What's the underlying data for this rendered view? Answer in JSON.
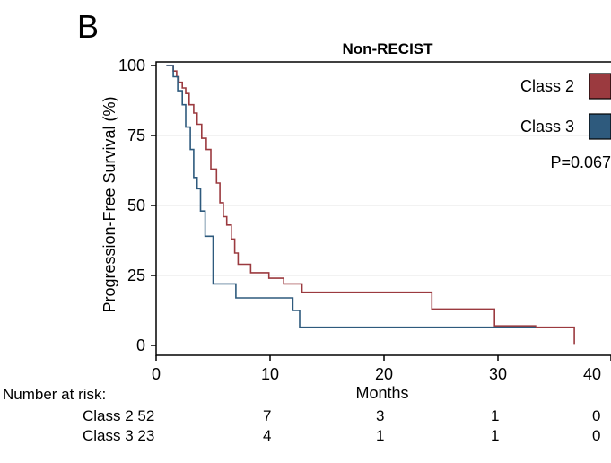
{
  "panel_label": "B",
  "chart_data": {
    "type": "line",
    "step": true,
    "title": "Non-RECIST",
    "xlabel": "Months",
    "ylabel": "Progression-Free Survival (%)",
    "xlim": [
      0,
      40
    ],
    "ylim": [
      0,
      100
    ],
    "xticks": [
      0,
      10,
      20,
      30,
      40
    ],
    "yticks": [
      0,
      25,
      50,
      75,
      100
    ],
    "grid": "horizontal",
    "legend_position": "top-right",
    "annotation": "P=0.067",
    "series": [
      {
        "name": "Class 2",
        "color": "#9b3a3f",
        "points": [
          [
            0.9,
            100
          ],
          [
            1.5,
            100
          ],
          [
            1.5,
            98
          ],
          [
            1.8,
            98
          ],
          [
            1.8,
            96
          ],
          [
            2.0,
            96
          ],
          [
            2.0,
            94
          ],
          [
            2.3,
            94
          ],
          [
            2.3,
            92
          ],
          [
            2.6,
            92
          ],
          [
            2.6,
            90
          ],
          [
            2.9,
            90
          ],
          [
            2.9,
            86
          ],
          [
            3.3,
            86
          ],
          [
            3.3,
            83
          ],
          [
            3.6,
            83
          ],
          [
            3.6,
            79
          ],
          [
            4.0,
            79
          ],
          [
            4.0,
            74
          ],
          [
            4.4,
            74
          ],
          [
            4.4,
            70
          ],
          [
            4.8,
            70
          ],
          [
            4.8,
            63
          ],
          [
            5.3,
            63
          ],
          [
            5.3,
            58
          ],
          [
            5.6,
            58
          ],
          [
            5.6,
            51
          ],
          [
            5.9,
            51
          ],
          [
            5.9,
            46
          ],
          [
            6.2,
            46
          ],
          [
            6.2,
            43
          ],
          [
            6.6,
            43
          ],
          [
            6.6,
            38
          ],
          [
            6.9,
            38
          ],
          [
            6.9,
            33
          ],
          [
            7.2,
            33
          ],
          [
            7.2,
            29
          ],
          [
            8.3,
            29
          ],
          [
            8.3,
            26
          ],
          [
            9.9,
            26
          ],
          [
            9.9,
            24
          ],
          [
            11.2,
            24
          ],
          [
            11.2,
            22
          ],
          [
            12.8,
            22
          ],
          [
            12.8,
            19
          ],
          [
            24.2,
            19
          ],
          [
            24.2,
            13
          ],
          [
            29.7,
            13
          ],
          [
            29.7,
            7
          ],
          [
            33.3,
            7
          ],
          [
            33.3,
            6.5
          ],
          [
            36.7,
            6.5
          ],
          [
            36.7,
            0.5
          ]
        ]
      },
      {
        "name": "Class 3",
        "color": "#2e5a7d",
        "points": [
          [
            0.9,
            100
          ],
          [
            1.5,
            100
          ],
          [
            1.5,
            96
          ],
          [
            1.9,
            96
          ],
          [
            1.9,
            91
          ],
          [
            2.3,
            91
          ],
          [
            2.3,
            86
          ],
          [
            2.6,
            86
          ],
          [
            2.6,
            78
          ],
          [
            3.0,
            78
          ],
          [
            3.0,
            70
          ],
          [
            3.3,
            70
          ],
          [
            3.3,
            60
          ],
          [
            3.6,
            60
          ],
          [
            3.6,
            56
          ],
          [
            3.9,
            56
          ],
          [
            3.9,
            48
          ],
          [
            4.3,
            48
          ],
          [
            4.3,
            39
          ],
          [
            5.0,
            39
          ],
          [
            5.0,
            22
          ],
          [
            7.0,
            22
          ],
          [
            7.0,
            17
          ],
          [
            12.0,
            17
          ],
          [
            12.0,
            12.5
          ],
          [
            12.6,
            12.5
          ],
          [
            12.6,
            6.5
          ],
          [
            33.3,
            6.5
          ]
        ]
      }
    ]
  },
  "risk_table": {
    "header": "Number at risk:",
    "rows": [
      {
        "label": "Class 2",
        "values": [
          "52",
          "7",
          "3",
          "1",
          "0"
        ]
      },
      {
        "label": "Class 3",
        "values": [
          "23",
          "4",
          "1",
          "1",
          "0"
        ]
      }
    ]
  }
}
